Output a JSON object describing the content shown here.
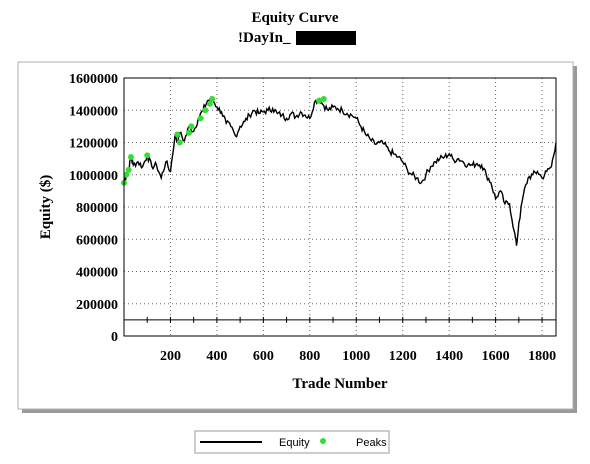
{
  "chart_data": {
    "type": "line",
    "title": "Equity Curve",
    "subtitle": "!DayIn_",
    "xlabel": "Trade Number",
    "ylabel": "Equity ($)",
    "xlim": [
      0,
      1860
    ],
    "ylim": [
      0,
      1600000
    ],
    "xticks": [
      200,
      400,
      600,
      800,
      1000,
      1200,
      1400,
      1600,
      1800
    ],
    "yticks": [
      0,
      200000,
      400000,
      600000,
      800000,
      1000000,
      1200000,
      1400000,
      1600000
    ],
    "xtick_labels": [
      "200",
      "400",
      "600",
      "800",
      "1000",
      "1200",
      "1400",
      "1600",
      "1800"
    ],
    "ytick_labels": [
      "0",
      "200000",
      "400000",
      "600000",
      "800000",
      "1000000",
      "1200000",
      "1400000",
      "1600000"
    ],
    "reference_line_y": 100000,
    "grid": "dotted",
    "legend_position": "bottom-center",
    "series": [
      {
        "name": "Equity",
        "color": "#000000",
        "x": [
          0,
          10,
          20,
          30,
          40,
          60,
          80,
          100,
          120,
          140,
          160,
          180,
          200,
          220,
          230,
          240,
          260,
          280,
          300,
          320,
          340,
          360,
          380,
          400,
          420,
          440,
          460,
          480,
          500,
          520,
          540,
          560,
          580,
          600,
          620,
          640,
          660,
          680,
          700,
          720,
          740,
          760,
          780,
          800,
          820,
          840,
          860,
          880,
          900,
          920,
          940,
          960,
          980,
          1000,
          1020,
          1040,
          1060,
          1080,
          1100,
          1120,
          1140,
          1160,
          1180,
          1200,
          1220,
          1240,
          1260,
          1280,
          1300,
          1320,
          1340,
          1360,
          1380,
          1400,
          1420,
          1440,
          1460,
          1480,
          1500,
          1520,
          1540,
          1560,
          1580,
          1600,
          1620,
          1640,
          1660,
          1680,
          1690,
          1700,
          1720,
          1740,
          1760,
          1780,
          1800,
          1820,
          1840,
          1860
        ],
        "y": [
          950000,
          1000000,
          1030000,
          1110000,
          1060000,
          1080000,
          1050000,
          1120000,
          1050000,
          1060000,
          980000,
          1080000,
          1020000,
          1250000,
          1200000,
          1260000,
          1210000,
          1300000,
          1270000,
          1350000,
          1400000,
          1460000,
          1470000,
          1420000,
          1390000,
          1320000,
          1300000,
          1240000,
          1300000,
          1330000,
          1370000,
          1400000,
          1380000,
          1390000,
          1400000,
          1410000,
          1380000,
          1370000,
          1350000,
          1380000,
          1360000,
          1390000,
          1370000,
          1350000,
          1450000,
          1470000,
          1430000,
          1400000,
          1420000,
          1410000,
          1400000,
          1380000,
          1370000,
          1350000,
          1300000,
          1250000,
          1220000,
          1190000,
          1200000,
          1190000,
          1150000,
          1130000,
          1110000,
          1080000,
          1030000,
          1000000,
          980000,
          950000,
          1000000,
          1050000,
          1080000,
          1100000,
          1110000,
          1130000,
          1090000,
          1100000,
          1080000,
          1060000,
          1060000,
          1070000,
          1060000,
          1000000,
          950000,
          850000,
          900000,
          820000,
          820000,
          650000,
          560000,
          700000,
          880000,
          980000,
          1000000,
          1020000,
          980000,
          1020000,
          1050000,
          1200000
        ]
      },
      {
        "name": "Peaks",
        "color": "#33dd33",
        "x": [
          0,
          10,
          20,
          30,
          100,
          230,
          240,
          280,
          290,
          330,
          350,
          370,
          380,
          840,
          860
        ],
        "y": [
          950000,
          1000000,
          1030000,
          1110000,
          1120000,
          1250000,
          1200000,
          1260000,
          1300000,
          1350000,
          1400000,
          1440000,
          1470000,
          1460000,
          1470000
        ]
      }
    ]
  }
}
